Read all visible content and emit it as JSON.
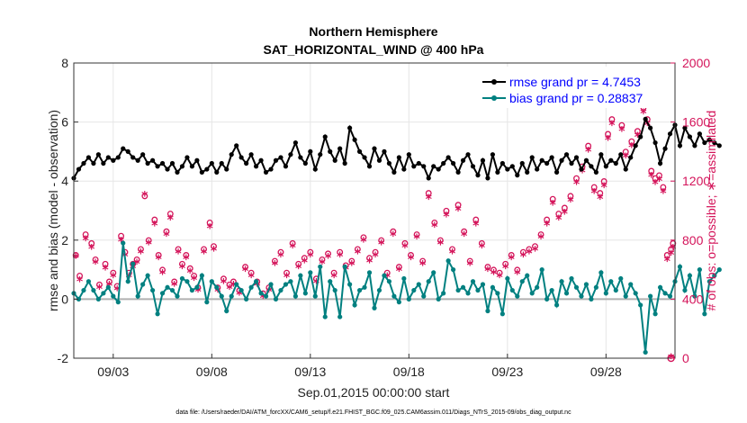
{
  "chart_data": {
    "type": "line",
    "title": "Northern Hemisphere",
    "subtitle": "SAT_HORIZONTAL_WIND @ 400 hPa",
    "xlabel": "Sep.01,2015 00:00:00 start",
    "ylabel": "rmse and bias (model - observation)",
    "ylabel_right": "# of obs: o=possible; ∗=assimilated",
    "xlim": [
      1,
      31.5
    ],
    "ylim": [
      -2,
      8
    ],
    "ylim_right": [
      0,
      2000
    ],
    "x_tick_labels": [
      "09/03",
      "09/08",
      "09/13",
      "09/18",
      "09/23",
      "09/28"
    ],
    "x_tick_values": [
      3,
      8,
      13,
      18,
      23,
      28
    ],
    "y_ticks": [
      -2,
      0,
      2,
      4,
      6,
      8
    ],
    "y_ticks_right": [
      0,
      400,
      800,
      1200,
      1600,
      2000
    ],
    "legend_position": "top-right",
    "footnote": "data file: /Users/raeder/DAI/ATM_forcXX/CAM6_setup/f.e21.FHIST_BGC.f09_025.CAM6assim.011/Diags_NTrS_2015-09/obs_diag_output.nc",
    "colors": {
      "rmse": "#000000",
      "bias": "#008080",
      "obs": "#d4145a",
      "zero_line": "#b0b0b0",
      "legend_text": "#0000ff"
    },
    "series": [
      {
        "name": "rmse grand pr = 4.7453",
        "axis": "left",
        "values": [
          4.1,
          4.4,
          4.6,
          4.8,
          4.6,
          4.9,
          4.6,
          4.8,
          4.7,
          4.8,
          5.1,
          5.0,
          4.8,
          4.7,
          4.9,
          4.6,
          4.7,
          4.5,
          4.6,
          4.4,
          4.6,
          4.3,
          4.5,
          4.8,
          4.5,
          4.7,
          4.3,
          4.4,
          4.6,
          4.3,
          4.6,
          4.4,
          4.9,
          5.2,
          4.8,
          4.6,
          4.9,
          4.5,
          4.7,
          4.3,
          4.4,
          4.7,
          4.8,
          4.5,
          4.9,
          5.3,
          4.8,
          4.6,
          5.0,
          4.4,
          4.9,
          5.5,
          5.0,
          4.7,
          5.1,
          4.6,
          5.8,
          5.4,
          5.0,
          4.8,
          4.5,
          5.1,
          4.7,
          5.0,
          4.6,
          4.3,
          4.8,
          4.4,
          4.9,
          4.5,
          4.6,
          4.5,
          4.1,
          4.5,
          4.4,
          4.6,
          4.8,
          4.6,
          4.3,
          4.7,
          4.9,
          4.5,
          4.2,
          4.7,
          4.1,
          4.9,
          4.3,
          4.6,
          4.4,
          4.5,
          4.2,
          4.6,
          4.3,
          4.8,
          4.4,
          4.7,
          4.6,
          4.8,
          4.3,
          4.7,
          4.9,
          4.6,
          4.8,
          4.4,
          4.7,
          4.5,
          4.3,
          4.9,
          4.5,
          4.7,
          4.6,
          4.9,
          4.4,
          4.8,
          5.2,
          5.5,
          6.1,
          5.8,
          5.3,
          4.6,
          5.1,
          5.6,
          5.9,
          5.2,
          5.8,
          5.5,
          5.2,
          5.6,
          5.3,
          5.4,
          5.3,
          5.2
        ],
        "marker": "filled-circle"
      },
      {
        "name": "bias grand pr = 0.28837",
        "axis": "left",
        "values": [
          0.2,
          0.0,
          0.3,
          0.6,
          0.3,
          0.0,
          0.2,
          0.4,
          0.1,
          -0.1,
          1.9,
          0.6,
          1.2,
          0.1,
          0.5,
          0.8,
          0.3,
          -0.5,
          0.2,
          0.4,
          0.3,
          0.1,
          0.7,
          0.6,
          0.3,
          0.4,
          0.8,
          -0.1,
          0.6,
          0.4,
          0.1,
          -0.4,
          0.1,
          0.5,
          0.3,
          0.0,
          0.4,
          0.6,
          0.2,
          0.1,
          0.5,
          0.0,
          0.3,
          0.5,
          0.6,
          0.1,
          0.8,
          0.2,
          0.9,
          0.1,
          1.1,
          -0.6,
          0.6,
          0.3,
          -0.6,
          1.1,
          0.5,
          -0.2,
          0.3,
          0.4,
          0.9,
          -0.3,
          0.3,
          0.8,
          0.6,
          0.1,
          -0.1,
          0.7,
          0.0,
          0.3,
          0.5,
          0.1,
          0.6,
          0.9,
          0.0,
          0.2,
          1.3,
          1.0,
          0.3,
          0.4,
          0.2,
          0.6,
          0.3,
          0.5,
          -0.4,
          0.4,
          0.2,
          -0.5,
          0.7,
          0.3,
          0.1,
          0.6,
          0.8,
          0.2,
          0.4,
          1.0,
          0.0,
          0.3,
          -0.2,
          0.6,
          0.2,
          0.7,
          0.4,
          0.1,
          0.5,
          0.0,
          0.4,
          0.9,
          0.2,
          0.6,
          0.3,
          0.7,
          0.1,
          0.5,
          0.2,
          -0.2,
          -1.8,
          0.1,
          -0.5,
          0.4,
          0.2,
          0.1,
          0.6,
          1.1,
          0.3,
          0.8,
          0.1,
          1.0,
          -0.5,
          0.6,
          0.8,
          1.0
        ],
        "marker": "filled-circle"
      },
      {
        "name": "possible obs",
        "axis": "right",
        "marker": "o",
        "values": [
          680,
          540,
          820,
          760,
          650,
          480,
          620,
          500,
          560,
          470,
          810,
          700,
          560,
          620,
          650,
          720,
          1080,
          780,
          920,
          680,
          580,
          840,
          960,
          500,
          720,
          620,
          680,
          590,
          540,
          460,
          720,
          900,
          740,
          460,
          520,
          480,
          500,
          440,
          600,
          560,
          500,
          420,
          460,
          640,
          700,
          560,
          760,
          620,
          660,
          700,
          520,
          650,
          690,
          560,
          700,
          610,
          640,
          720,
          800,
          660,
          700,
          780,
          560,
          840,
          600,
          760,
          680,
          820,
          640,
          1100,
          900,
          780,
          980,
          720,
          1020,
          840,
          640,
          920,
          760,
          600,
          580,
          560,
          620,
          680,
          580,
          700,
          720,
          740,
          820,
          920,
          1060,
          960,
          1000,
          1080,
          1200,
          1280,
          1420,
          1140,
          1100,
          1180,
          1500,
          1600,
          1780,
          1560,
          1380,
          1450,
          1520,
          1680,
          1600,
          1250,
          1200,
          1220,
          1140,
          680,
          720,
          760
        ],
        "x": [
          1.1,
          1.3,
          1.6,
          1.9,
          2.1,
          2.3,
          2.6,
          2.8,
          3.0,
          3.2,
          3.4,
          3.6,
          3.8,
          4.0,
          4.2,
          4.4,
          4.6,
          4.8,
          5.1,
          5.3,
          5.5,
          5.7,
          5.9,
          6.1,
          6.3,
          6.5,
          6.7,
          6.9,
          7.1,
          7.3,
          7.6,
          7.9,
          8.1,
          8.3,
          8.6,
          8.9,
          9.1,
          9.4,
          9.7,
          10.0,
          10.3,
          10.6,
          10.9,
          11.2,
          11.5,
          11.8,
          12.1,
          12.4,
          12.7,
          13.0,
          13.3,
          13.6,
          13.9,
          14.2,
          14.5,
          14.8,
          15.1,
          15.4,
          15.7,
          16.0,
          16.3,
          16.6,
          16.9,
          17.2,
          17.5,
          17.8,
          18.1,
          18.4,
          18.7,
          19.0,
          19.3,
          19.6,
          19.9,
          20.2,
          20.5,
          20.8,
          21.1,
          21.4,
          21.7,
          22.0,
          22.3,
          22.6,
          22.9,
          23.2,
          23.5,
          23.8,
          24.1,
          24.4,
          24.7,
          25.0,
          25.3,
          25.6,
          25.9,
          26.2,
          26.5,
          26.8,
          27.1,
          27.4,
          27.7,
          27.9,
          28.1,
          28.3,
          28.5,
          28.8,
          29.0,
          29.3,
          29.6,
          29.9,
          30.1,
          30.3,
          30.5,
          30.7,
          30.9,
          31.1,
          31.3,
          31.4
        ]
      },
      {
        "name": "assimilated obs",
        "axis": "right",
        "marker": "*",
        "values": [
          680,
          520,
          800,
          740,
          640,
          470,
          600,
          490,
          550,
          460,
          790,
          690,
          550,
          610,
          640,
          710,
          1100,
          770,
          900,
          670,
          570,
          830,
          940,
          490,
          710,
          610,
          670,
          580,
          530,
          450,
          710,
          880,
          730,
          450,
          510,
          470,
          490,
          430,
          590,
          550,
          490,
          410,
          450,
          630,
          690,
          550,
          750,
          610,
          650,
          690,
          510,
          640,
          680,
          550,
          690,
          600,
          630,
          710,
          790,
          650,
          690,
          770,
          550,
          830,
          590,
          750,
          670,
          810,
          630,
          1080,
          890,
          770,
          960,
          710,
          1000,
          830,
          630,
          900,
          750,
          590,
          570,
          550,
          610,
          670,
          570,
          690,
          710,
          730,
          810,
          900,
          1040,
          940,
          980,
          1060,
          1180,
          1260,
          1400,
          1120,
          1080,
          1160,
          1480,
          1580,
          1740,
          1540,
          1360,
          1430,
          1500,
          1660,
          1580,
          1230,
          1180,
          1200,
          1120,
          660,
          700,
          740
        ],
        "x": [
          1.1,
          1.3,
          1.6,
          1.9,
          2.1,
          2.3,
          2.6,
          2.8,
          3.0,
          3.2,
          3.4,
          3.6,
          3.8,
          4.0,
          4.2,
          4.4,
          4.6,
          4.8,
          5.1,
          5.3,
          5.5,
          5.7,
          5.9,
          6.1,
          6.3,
          6.5,
          6.7,
          6.9,
          7.1,
          7.3,
          7.6,
          7.9,
          8.1,
          8.3,
          8.6,
          8.9,
          9.1,
          9.4,
          9.7,
          10.0,
          10.3,
          10.6,
          10.9,
          11.2,
          11.5,
          11.8,
          12.1,
          12.4,
          12.7,
          13.0,
          13.3,
          13.6,
          13.9,
          14.2,
          14.5,
          14.8,
          15.1,
          15.4,
          15.7,
          16.0,
          16.3,
          16.6,
          16.9,
          17.2,
          17.5,
          17.8,
          18.1,
          18.4,
          18.7,
          19.0,
          19.3,
          19.6,
          19.9,
          20.2,
          20.5,
          20.8,
          21.1,
          21.4,
          21.7,
          22.0,
          22.3,
          22.6,
          22.9,
          23.2,
          23.5,
          23.8,
          24.1,
          24.4,
          24.7,
          25.0,
          25.3,
          25.6,
          25.9,
          26.2,
          26.5,
          26.8,
          27.1,
          27.4,
          27.7,
          27.9,
          28.1,
          28.3,
          28.5,
          28.8,
          29.0,
          29.3,
          29.6,
          29.9,
          30.1,
          30.3,
          30.5,
          30.7,
          30.9,
          31.1,
          31.3,
          31.4
        ]
      }
    ],
    "x_line": {
      "start": 1.0,
      "step": 0.25
    },
    "extra_right_points": [
      {
        "x": 31.3,
        "y": 0,
        "marker": "o"
      },
      {
        "x": 31.3,
        "y": 0,
        "marker": "*"
      }
    ]
  }
}
